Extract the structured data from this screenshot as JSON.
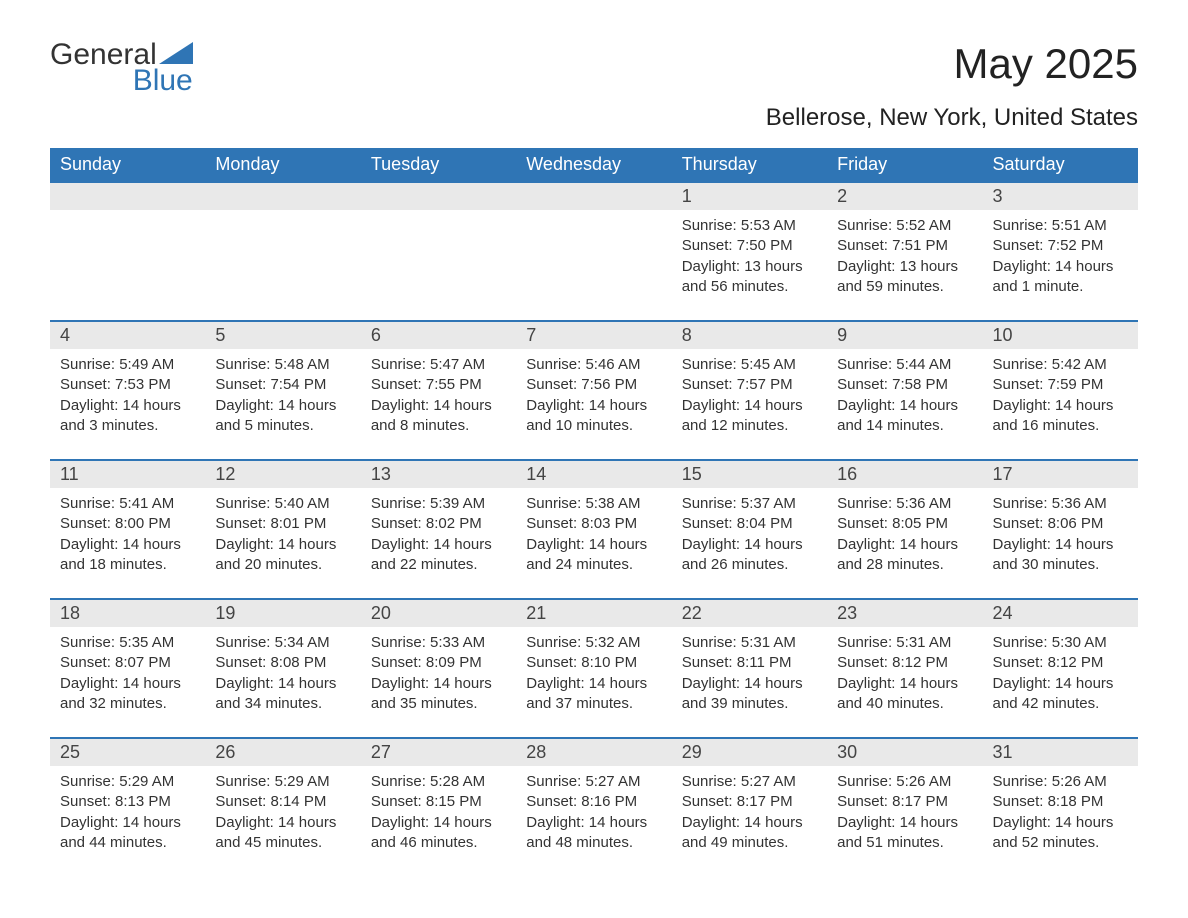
{
  "logo": {
    "text1": "General",
    "text2": "Blue",
    "triangle_color": "#2f75b5"
  },
  "title": "May 2025",
  "location": "Bellerose, New York, United States",
  "colors": {
    "header_bg": "#2f75b5",
    "header_text": "#ffffff",
    "daynum_bg": "#e9e9e9",
    "row_border": "#2f75b5",
    "body_text": "#333333",
    "page_bg": "#ffffff"
  },
  "layout": {
    "columns": 7,
    "rows": 5,
    "font_family": "Arial",
    "title_fontsize": 42,
    "location_fontsize": 24,
    "header_fontsize": 18,
    "daynum_fontsize": 18,
    "body_fontsize": 15
  },
  "day_headers": [
    "Sunday",
    "Monday",
    "Tuesday",
    "Wednesday",
    "Thursday",
    "Friday",
    "Saturday"
  ],
  "weeks": [
    [
      {
        "empty": true
      },
      {
        "empty": true
      },
      {
        "empty": true
      },
      {
        "empty": true
      },
      {
        "num": "1",
        "sunrise": "Sunrise: 5:53 AM",
        "sunset": "Sunset: 7:50 PM",
        "daylight": "Daylight: 13 hours and 56 minutes."
      },
      {
        "num": "2",
        "sunrise": "Sunrise: 5:52 AM",
        "sunset": "Sunset: 7:51 PM",
        "daylight": "Daylight: 13 hours and 59 minutes."
      },
      {
        "num": "3",
        "sunrise": "Sunrise: 5:51 AM",
        "sunset": "Sunset: 7:52 PM",
        "daylight": "Daylight: 14 hours and 1 minute."
      }
    ],
    [
      {
        "num": "4",
        "sunrise": "Sunrise: 5:49 AM",
        "sunset": "Sunset: 7:53 PM",
        "daylight": "Daylight: 14 hours and 3 minutes."
      },
      {
        "num": "5",
        "sunrise": "Sunrise: 5:48 AM",
        "sunset": "Sunset: 7:54 PM",
        "daylight": "Daylight: 14 hours and 5 minutes."
      },
      {
        "num": "6",
        "sunrise": "Sunrise: 5:47 AM",
        "sunset": "Sunset: 7:55 PM",
        "daylight": "Daylight: 14 hours and 8 minutes."
      },
      {
        "num": "7",
        "sunrise": "Sunrise: 5:46 AM",
        "sunset": "Sunset: 7:56 PM",
        "daylight": "Daylight: 14 hours and 10 minutes."
      },
      {
        "num": "8",
        "sunrise": "Sunrise: 5:45 AM",
        "sunset": "Sunset: 7:57 PM",
        "daylight": "Daylight: 14 hours and 12 minutes."
      },
      {
        "num": "9",
        "sunrise": "Sunrise: 5:44 AM",
        "sunset": "Sunset: 7:58 PM",
        "daylight": "Daylight: 14 hours and 14 minutes."
      },
      {
        "num": "10",
        "sunrise": "Sunrise: 5:42 AM",
        "sunset": "Sunset: 7:59 PM",
        "daylight": "Daylight: 14 hours and 16 minutes."
      }
    ],
    [
      {
        "num": "11",
        "sunrise": "Sunrise: 5:41 AM",
        "sunset": "Sunset: 8:00 PM",
        "daylight": "Daylight: 14 hours and 18 minutes."
      },
      {
        "num": "12",
        "sunrise": "Sunrise: 5:40 AM",
        "sunset": "Sunset: 8:01 PM",
        "daylight": "Daylight: 14 hours and 20 minutes."
      },
      {
        "num": "13",
        "sunrise": "Sunrise: 5:39 AM",
        "sunset": "Sunset: 8:02 PM",
        "daylight": "Daylight: 14 hours and 22 minutes."
      },
      {
        "num": "14",
        "sunrise": "Sunrise: 5:38 AM",
        "sunset": "Sunset: 8:03 PM",
        "daylight": "Daylight: 14 hours and 24 minutes."
      },
      {
        "num": "15",
        "sunrise": "Sunrise: 5:37 AM",
        "sunset": "Sunset: 8:04 PM",
        "daylight": "Daylight: 14 hours and 26 minutes."
      },
      {
        "num": "16",
        "sunrise": "Sunrise: 5:36 AM",
        "sunset": "Sunset: 8:05 PM",
        "daylight": "Daylight: 14 hours and 28 minutes."
      },
      {
        "num": "17",
        "sunrise": "Sunrise: 5:36 AM",
        "sunset": "Sunset: 8:06 PM",
        "daylight": "Daylight: 14 hours and 30 minutes."
      }
    ],
    [
      {
        "num": "18",
        "sunrise": "Sunrise: 5:35 AM",
        "sunset": "Sunset: 8:07 PM",
        "daylight": "Daylight: 14 hours and 32 minutes."
      },
      {
        "num": "19",
        "sunrise": "Sunrise: 5:34 AM",
        "sunset": "Sunset: 8:08 PM",
        "daylight": "Daylight: 14 hours and 34 minutes."
      },
      {
        "num": "20",
        "sunrise": "Sunrise: 5:33 AM",
        "sunset": "Sunset: 8:09 PM",
        "daylight": "Daylight: 14 hours and 35 minutes."
      },
      {
        "num": "21",
        "sunrise": "Sunrise: 5:32 AM",
        "sunset": "Sunset: 8:10 PM",
        "daylight": "Daylight: 14 hours and 37 minutes."
      },
      {
        "num": "22",
        "sunrise": "Sunrise: 5:31 AM",
        "sunset": "Sunset: 8:11 PM",
        "daylight": "Daylight: 14 hours and 39 minutes."
      },
      {
        "num": "23",
        "sunrise": "Sunrise: 5:31 AM",
        "sunset": "Sunset: 8:12 PM",
        "daylight": "Daylight: 14 hours and 40 minutes."
      },
      {
        "num": "24",
        "sunrise": "Sunrise: 5:30 AM",
        "sunset": "Sunset: 8:12 PM",
        "daylight": "Daylight: 14 hours and 42 minutes."
      }
    ],
    [
      {
        "num": "25",
        "sunrise": "Sunrise: 5:29 AM",
        "sunset": "Sunset: 8:13 PM",
        "daylight": "Daylight: 14 hours and 44 minutes."
      },
      {
        "num": "26",
        "sunrise": "Sunrise: 5:29 AM",
        "sunset": "Sunset: 8:14 PM",
        "daylight": "Daylight: 14 hours and 45 minutes."
      },
      {
        "num": "27",
        "sunrise": "Sunrise: 5:28 AM",
        "sunset": "Sunset: 8:15 PM",
        "daylight": "Daylight: 14 hours and 46 minutes."
      },
      {
        "num": "28",
        "sunrise": "Sunrise: 5:27 AM",
        "sunset": "Sunset: 8:16 PM",
        "daylight": "Daylight: 14 hours and 48 minutes."
      },
      {
        "num": "29",
        "sunrise": "Sunrise: 5:27 AM",
        "sunset": "Sunset: 8:17 PM",
        "daylight": "Daylight: 14 hours and 49 minutes."
      },
      {
        "num": "30",
        "sunrise": "Sunrise: 5:26 AM",
        "sunset": "Sunset: 8:17 PM",
        "daylight": "Daylight: 14 hours and 51 minutes."
      },
      {
        "num": "31",
        "sunrise": "Sunrise: 5:26 AM",
        "sunset": "Sunset: 8:18 PM",
        "daylight": "Daylight: 14 hours and 52 minutes."
      }
    ]
  ]
}
